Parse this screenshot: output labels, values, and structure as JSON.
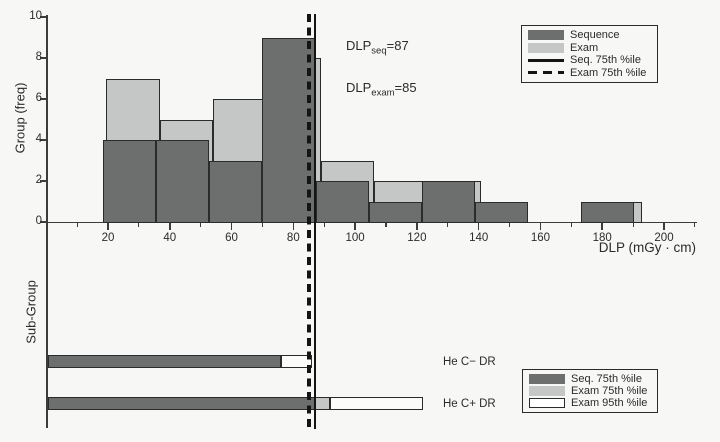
{
  "figure": {
    "background": "#f7f8f5",
    "colors": {
      "sequence_fill": "#6d6f6e",
      "exam_fill": "#c5c7c6",
      "white_fill": "#fbfbfa",
      "outline": "#2b2b2b",
      "axis": "#3c3c3c",
      "line_black": "#141414"
    },
    "top_panel": {
      "ylabel": "Group (freq)",
      "xlabel": "DLP (mGy · cm)",
      "y_ticks": [
        0,
        2,
        4,
        6,
        8,
        10
      ],
      "x_major_ticks": [
        20,
        40,
        60,
        80,
        100,
        120,
        140,
        160,
        180,
        200
      ],
      "annotations": [
        {
          "prefix": "DLP",
          "sub": "seq",
          "suffix": "=87"
        },
        {
          "prefix": "DLP",
          "sub": "exam",
          "suffix": "=85"
        }
      ],
      "legend": {
        "items": [
          {
            "label": "Sequence",
            "swatch": "fill-dark"
          },
          {
            "label": "Exam",
            "swatch": "fill-light"
          },
          {
            "label": "Seq. 75th %ile",
            "swatch": "line-solid"
          },
          {
            "label": "Exam 75th %ile",
            "swatch": "line-dashed"
          }
        ]
      }
    },
    "bottom_panel": {
      "ylabel": "Sub-Group",
      "legend": {
        "items": [
          {
            "label": "Seq. 75th %ile",
            "swatch": "fill-dark"
          },
          {
            "label": "Exam 75th %ile",
            "swatch": "fill-light"
          },
          {
            "label": "Exam 95th %ile",
            "swatch": "fill-white"
          }
        ]
      }
    }
  },
  "chart_data": [
    {
      "type": "histogram",
      "xlabel": "DLP (mGy · cm)",
      "ylabel": "Group (freq)",
      "xlim": [
        0,
        210
      ],
      "ylim": [
        0,
        10
      ],
      "x_major_ticks": [
        20,
        40,
        60,
        80,
        100,
        120,
        140,
        160,
        180,
        200
      ],
      "x_minor_tick_step": 10,
      "y_ticks": [
        0,
        2,
        4,
        6,
        8,
        10
      ],
      "grid": false,
      "legend_position": "top-right",
      "series": [
        {
          "name": "Exam",
          "role": "exam",
          "bin_start": 19.4,
          "bin_width": 17.35,
          "counts": [
            7,
            5,
            6,
            8,
            3,
            2,
            2,
            0,
            0,
            1
          ]
        },
        {
          "name": "Sequence",
          "role": "sequence",
          "bin_start": 18.4,
          "bin_width": 17.2,
          "counts": [
            4,
            4,
            3,
            9,
            2,
            1,
            2,
            1,
            0,
            1
          ]
        }
      ],
      "vlines": [
        {
          "name": "Seq. 75th %ile",
          "x": 87,
          "style": "solid"
        },
        {
          "name": "Exam 75th %ile",
          "x": 85,
          "style": "dashed"
        }
      ],
      "annotations": [
        "DLP_seq=87",
        "DLP_exam=85"
      ]
    },
    {
      "type": "bar",
      "orientation": "horizontal",
      "ylabel": "Sub-Group",
      "categories": [
        "He C− DR",
        "He C+ DR"
      ],
      "series": [
        {
          "name": "Seq. 75th %ile",
          "role": "sequence",
          "values": [
            76,
            87
          ]
        },
        {
          "name": "Exam 75th %ile",
          "role": "exam",
          "values": [
            76,
            92
          ]
        },
        {
          "name": "Exam 95th %ile",
          "role": "white",
          "values": [
            86,
            122
          ]
        }
      ],
      "legend_position": "bottom-right"
    }
  ]
}
